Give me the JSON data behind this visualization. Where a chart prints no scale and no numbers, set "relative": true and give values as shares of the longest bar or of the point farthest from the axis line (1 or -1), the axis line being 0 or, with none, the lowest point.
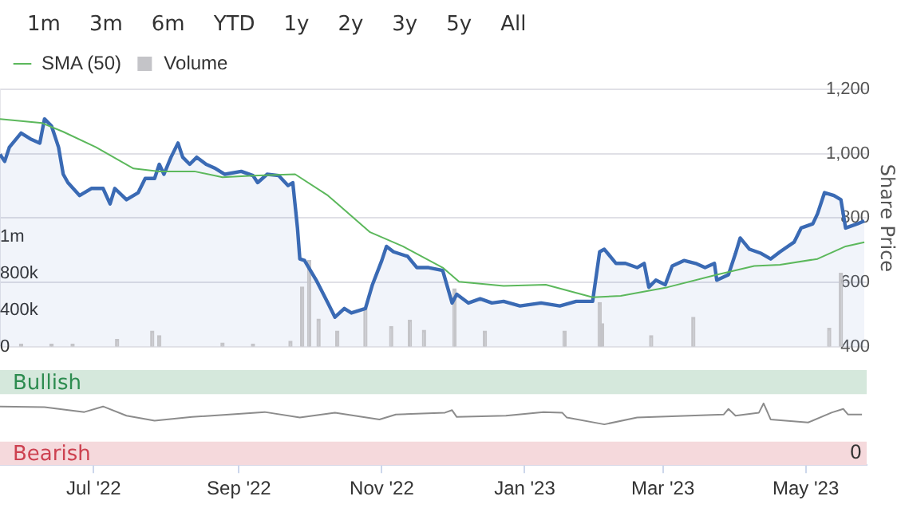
{
  "chart_data": [
    {
      "type": "area",
      "annotations": [
        "1m",
        "3m",
        "6m",
        "YTD",
        "1y",
        "2y",
        "3y",
        "5y",
        "All"
      ],
      "y2label": "Share Price",
      "xlim": [
        "2022-05-22",
        "2023-05-27"
      ],
      "ylim": [
        0,
        2800000
      ],
      "yticks": [
        0,
        {
          "value": 400000,
          "label": "400k"
        },
        {
          "value": 800000,
          "label": "800k"
        },
        {
          "value": 1200000,
          "label": "1m"
        }
      ],
      "y2lim": [
        400,
        1200
      ],
      "y2ticks": [
        400,
        600,
        800,
        {
          "value": 1000,
          "label": "1,000"
        },
        {
          "value": 1200,
          "label": "1,200"
        }
      ],
      "grid": "y",
      "legend": "top left",
      "tick_labels": "y",
      "series": [
        {
          "type": "bar",
          "name": "Volume",
          "color": "#c4c4c8",
          "axis": "y",
          "x": [
            "2022-05-31",
            "2022-06-13",
            "2022-06-22",
            "2022-07-11",
            "2022-07-26",
            "2022-07-29",
            "2022-08-25",
            "2022-09-07",
            "2022-09-23",
            "2022-09-28",
            "2022-10-01",
            "2022-10-05",
            "2022-10-13",
            "2022-10-25",
            "2022-11-05",
            "2022-11-13",
            "2022-11-19",
            "2022-12-02",
            "2022-12-15",
            "2023-01-18",
            "2023-02-02",
            "2023-02-03",
            "2023-02-24",
            "2023-03-14",
            "2023-05-11",
            "2023-05-16"
          ],
          "values": [
            30000,
            30000,
            30000,
            80000,
            170000,
            120000,
            40000,
            30000,
            60000,
            650000,
            940000,
            300000,
            170000,
            420000,
            220000,
            290000,
            180000,
            630000,
            170000,
            170000,
            480000,
            250000,
            120000,
            320000,
            200000,
            800000
          ]
        },
        {
          "color": "#3a6ab4",
          "axis": "y2",
          "x": [
            "2022-05-22",
            "2022-05-24",
            "2022-05-26",
            "2022-05-31",
            "2022-06-04",
            "2022-06-08",
            "2022-06-10",
            "2022-06-13",
            "2022-06-16",
            "2022-06-18",
            "2022-06-20",
            "2022-06-25",
            "2022-06-30",
            "2022-07-05",
            "2022-07-08",
            "2022-07-10",
            "2022-07-15",
            "2022-07-20",
            "2022-07-23",
            "2022-07-27",
            "2022-07-29",
            "2022-07-31",
            "2022-08-03",
            "2022-08-06",
            "2022-08-08",
            "2022-08-11",
            "2022-08-14",
            "2022-08-18",
            "2022-08-22",
            "2022-08-26",
            "2022-09-02",
            "2022-09-07",
            "2022-09-09",
            "2022-09-13",
            "2022-09-18",
            "2022-09-22",
            "2022-09-24",
            "2022-09-26",
            "2022-09-27",
            "2022-09-29",
            "2022-10-04",
            "2022-10-09",
            "2022-10-12",
            "2022-10-16",
            "2022-10-19",
            "2022-10-25",
            "2022-10-28",
            "2022-11-01",
            "2022-11-03",
            "2022-11-06",
            "2022-11-12",
            "2022-11-16",
            "2022-11-21",
            "2022-11-27",
            "2022-12-01",
            "2022-12-03",
            "2022-12-08",
            "2022-12-13",
            "2022-12-18",
            "2022-12-23",
            "2022-12-30",
            "2023-01-08",
            "2023-01-16",
            "2023-01-23",
            "2023-01-30",
            "2023-02-02",
            "2023-02-04",
            "2023-02-09",
            "2023-02-13",
            "2023-02-18",
            "2023-02-21",
            "2023-02-23",
            "2023-02-26",
            "2023-03-02",
            "2023-03-05",
            "2023-03-10",
            "2023-03-15",
            "2023-03-19",
            "2023-03-23",
            "2023-03-24",
            "2023-03-29",
            "2023-04-01",
            "2023-04-03",
            "2023-04-07",
            "2023-04-12",
            "2023-04-16",
            "2023-04-20",
            "2023-04-26",
            "2023-04-29",
            "2023-05-04",
            "2023-05-06",
            "2023-05-09",
            "2023-05-13",
            "2023-05-16",
            "2023-05-18",
            "2023-05-23",
            "2023-05-26"
          ],
          "values": [
            998,
            976,
            1020,
            1064,
            1046,
            1033,
            1108,
            1086,
            1020,
            936,
            910,
            870,
            892,
            892,
            844,
            892,
            857,
            879,
            923,
            923,
            967,
            936,
            989,
            1033,
            989,
            967,
            989,
            967,
            954,
            936,
            945,
            932,
            910,
            936,
            932,
            901,
            910,
            769,
            673,
            668,
            607,
            536,
            492,
            519,
            505,
            519,
            593,
            668,
            712,
            695,
            681,
            646,
            646,
            637,
            536,
            563,
            536,
            549,
            536,
            541,
            527,
            536,
            527,
            541,
            541,
            695,
            703,
            659,
            659,
            646,
            659,
            585,
            607,
            593,
            651,
            668,
            659,
            646,
            659,
            607,
            624,
            690,
            738,
            703,
            690,
            673,
            695,
            725,
            769,
            782,
            813,
            879,
            870,
            857,
            769,
            782,
            791
          ]
        },
        {
          "type": "line",
          "name": "SMA (50)",
          "color": "#5cb85c",
          "axis": "y2",
          "x": [
            "2022-05-22",
            "2022-06-09",
            "2022-06-18",
            "2022-07-02",
            "2022-07-18",
            "2022-07-29",
            "2022-08-13",
            "2022-08-25",
            "2022-09-07",
            "2022-09-25",
            "2022-10-09",
            "2022-10-27",
            "2022-11-10",
            "2022-11-27",
            "2022-12-04",
            "2022-12-23",
            "2023-01-10",
            "2023-01-30",
            "2023-02-11",
            "2023-03-03",
            "2023-03-24",
            "2023-04-09",
            "2023-04-20",
            "2023-05-06",
            "2023-05-18",
            "2023-05-26"
          ],
          "values": [
            1108,
            1095,
            1068,
            1020,
            954,
            945,
            945,
            927,
            932,
            936,
            870,
            756,
            712,
            646,
            602,
            589,
            593,
            554,
            558,
            585,
            624,
            651,
            655,
            673,
            712,
            725
          ]
        }
      ]
    },
    {
      "type": "line",
      "relative": true,
      "annotations": [
        {
          "text": "0",
          "x": "2023-05-27",
          "y": 0
        }
      ],
      "xlim": [
        "2022-05-22",
        "2023-05-27"
      ],
      "xticks": [
        {
          "value": "2022-07-01",
          "label": "Jul '22"
        },
        {
          "value": "2022-09-01",
          "label": "Sep '22"
        },
        {
          "value": "2022-11-01",
          "label": "Nov '22"
        },
        {
          "value": "2023-01-01",
          "label": "Jan '23"
        },
        {
          "value": "2023-03-01",
          "label": "Mar '23"
        },
        {
          "value": "2023-05-01",
          "label": "May '23"
        }
      ],
      "bands": [
        {
          "axis": "y",
          "from": 1.15,
          "to": 1.54,
          "label": "Bullish",
          "color": "#d5e8dc"
        },
        {
          "axis": "y",
          "from": 0,
          "to": 0.38,
          "label": "Bearish",
          "color": "#f5d9dc"
        }
      ],
      "series": [
        {
          "color": "#8c8c8c",
          "x": [
            "2022-05-22",
            "2022-06-10",
            "2022-06-27",
            "2022-07-05",
            "2022-07-15",
            "2022-07-27",
            "2022-08-12",
            "2022-09-12",
            "2022-09-27",
            "2022-10-12",
            "2022-10-31",
            "2022-11-07",
            "2022-11-28",
            "2022-12-01",
            "2022-12-03",
            "2022-12-24",
            "2023-01-09",
            "2023-01-17",
            "2023-01-19",
            "2023-02-04",
            "2023-02-18",
            "2023-03-27",
            "2023-03-29",
            "2023-04-01",
            "2023-04-11",
            "2023-04-13",
            "2023-04-16",
            "2023-05-02",
            "2023-05-12",
            "2023-05-17",
            "2023-05-19",
            "2023-05-25"
          ],
          "values": [
            0.95,
            0.94,
            0.86,
            0.95,
            0.8,
            0.72,
            0.78,
            0.86,
            0.77,
            0.85,
            0.74,
            0.82,
            0.85,
            0.89,
            0.78,
            0.8,
            0.86,
            0.85,
            0.77,
            0.66,
            0.77,
            0.82,
            0.91,
            0.8,
            0.85,
            1,
            0.74,
            0.69,
            0.85,
            0.91,
            0.82,
            0.82
          ]
        }
      ]
    }
  ]
}
